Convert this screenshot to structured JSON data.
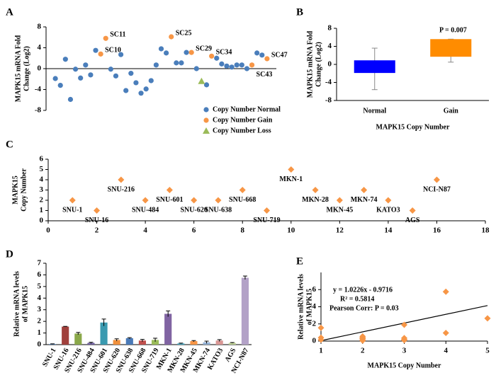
{
  "chart_data": [
    {
      "type": "scatter",
      "panel": "A",
      "ylabel": [
        "MAPK15 mRNA Fold",
        "Change (Log2)"
      ],
      "xlim": [
        0,
        44
      ],
      "ylim": [
        -8,
        8
      ],
      "yticks": [
        -8,
        -4,
        0,
        4,
        8
      ],
      "legend": "lower right",
      "series": [
        {
          "name": "Copy Number Normal",
          "color": "#4a7ebb",
          "marker": "circle",
          "x": [
            1,
            2,
            3,
            4,
            5,
            6,
            7,
            8,
            9,
            12,
            13,
            14,
            15,
            16,
            17,
            18,
            19,
            20,
            21,
            22,
            23,
            25,
            26,
            27,
            29,
            31,
            33,
            34,
            35,
            36,
            37,
            38,
            39,
            41,
            42
          ],
          "values": [
            -1.9,
            -3.2,
            1.8,
            -5.9,
            -0.1,
            -1.8,
            0.7,
            -1.2,
            3.5,
            -0.1,
            -1.4,
            2.7,
            -4.2,
            -0.9,
            -2.7,
            -4.7,
            -3.9,
            -2.3,
            0.7,
            3.8,
            3.0,
            1.1,
            1.1,
            3.1,
            0,
            -3.1,
            2.0,
            0.9,
            0.5,
            0.3,
            0.7,
            0.7,
            0,
            3.0,
            2.6
          ]
        },
        {
          "name": "Copy Number Gain",
          "color": "#f79646",
          "marker": "circle",
          "x": [
            10,
            11,
            24,
            28,
            32,
            40,
            43
          ],
          "values": [
            2.8,
            5.8,
            6.1,
            3.1,
            2.4,
            0.7,
            1.9
          ],
          "labels": [
            "SC10",
            "SC11",
            "SC25",
            "SC29",
            "SC34",
            "SC43",
            "SC47"
          ]
        },
        {
          "name": "Copy Number Loss",
          "color": "#9bbb59",
          "marker": "triangle",
          "x": [
            30
          ],
          "values": [
            -2.4
          ]
        }
      ]
    },
    {
      "type": "bar",
      "panel": "B",
      "ylabel": [
        "MAPK15  mRNA  Fold",
        "Change (Log2)"
      ],
      "xlabel": "MAPK15  Copy  Number",
      "categories": [
        "Normal",
        "Gain"
      ],
      "ranges": [
        [
          -1.9,
          0.9
        ],
        [
          1.7,
          5.6
        ]
      ],
      "whiskers": [
        [
          -5.6,
          3.6
        ],
        [
          0.5,
          5.6
        ]
      ],
      "colors": [
        "#0000ff",
        "#ff8c00"
      ],
      "ylim": [
        -8,
        8
      ],
      "yticks": [
        -8,
        -4,
        0,
        4,
        8
      ],
      "annotations": [
        "P = 0.007"
      ]
    },
    {
      "type": "scatter",
      "panel": "C",
      "ylabel": [
        "MAPK15",
        "Copy  Number"
      ],
      "xlim": [
        0,
        18
      ],
      "xticks": [
        0,
        2,
        4,
        6,
        8,
        10,
        12,
        14,
        16,
        18
      ],
      "ylim": [
        0,
        6
      ],
      "yticks": [
        0,
        1,
        2,
        3,
        4,
        5,
        6
      ],
      "series": [
        {
          "color": "#f79646",
          "marker": "diamond",
          "x": [
            1,
            2,
            3,
            4,
            5,
            6,
            7,
            8,
            9,
            10,
            11,
            12,
            13,
            14,
            15,
            16
          ],
          "values": [
            2,
            1,
            4,
            2,
            3,
            2,
            2,
            3,
            1,
            5,
            3,
            2,
            3,
            2,
            1,
            4
          ],
          "labels": [
            "SNU-1",
            "SNU-16",
            "SNU-216",
            "SNU-484",
            "SNU-601",
            "SNU-620",
            "SNU-638",
            "SNU-668",
            "SNU-719",
            "MKN-1",
            "MKN-28",
            "MKN-45",
            "MKN-74",
            "KATO3",
            "AGS",
            "NCI-N87"
          ]
        }
      ]
    },
    {
      "type": "bar",
      "panel": "D",
      "ylabel": [
        "Relative mRNA levels",
        "of MAPK15"
      ],
      "categories": [
        "SNU-1",
        "SNU-16",
        "SNU-216",
        "SNU-484",
        "SNU-601",
        "SNU-620",
        "SNU-638",
        "SNU-668",
        "SNU-719",
        "MKN-1",
        "MKN-28",
        "MKN-45",
        "MKN-74",
        "KATO3",
        "AGS",
        "NCI-N87"
      ],
      "values": [
        0.05,
        1.55,
        0.95,
        0.15,
        1.9,
        0.4,
        0.55,
        0.35,
        0.4,
        2.65,
        0.1,
        0.3,
        0.2,
        0.35,
        0.15,
        5.75
      ],
      "errors": [
        0.02,
        0.02,
        0.1,
        0.05,
        0.3,
        0.1,
        0.05,
        0.1,
        0.15,
        0.25,
        0.03,
        0.05,
        0.1,
        0.08,
        0.03,
        0.15
      ],
      "colors": [
        "#4f81bd",
        "#a0403c",
        "#8aa84a",
        "#7060a0",
        "#3a9ab0",
        "#f0903c",
        "#4a7ab8",
        "#c0504d",
        "#9bbb59",
        "#8064a2",
        "#4bacc6",
        "#f79646",
        "#95b3d7",
        "#d99694",
        "#c3d69b",
        "#b3a2c7"
      ],
      "ylim": [
        0,
        7
      ],
      "yticks": [
        0,
        1,
        2,
        3,
        4,
        5,
        6,
        7
      ]
    },
    {
      "type": "scatter",
      "panel": "E",
      "ylabel": [
        "Relative mRNA levels",
        "of  MAPK15"
      ],
      "xlabel": "MAPK15  Copy  Number",
      "xlim": [
        1,
        5
      ],
      "xticks": [
        1,
        2,
        3,
        4,
        5
      ],
      "ylim": [
        0,
        8
      ],
      "yticks": [
        0,
        2,
        4,
        6
      ],
      "series": [
        {
          "color": "#f79646",
          "marker": "diamond",
          "x": [
            1,
            1,
            1,
            2,
            2,
            2,
            2,
            2,
            2,
            3,
            3,
            3,
            3,
            4,
            4,
            5
          ],
          "values": [
            1.55,
            0.4,
            0.15,
            0.05,
            0.15,
            0.4,
            0.55,
            0.3,
            0.35,
            1.9,
            0.35,
            0.1,
            0.2,
            0.95,
            5.75,
            2.65
          ]
        }
      ],
      "trendline": {
        "slope": 1.0226,
        "intercept": -0.9716
      },
      "annotations": [
        "y = 1.0226x - 0.9716",
        "R² = 0.5814",
        "Pearson Corr: P = 0.03"
      ]
    }
  ]
}
